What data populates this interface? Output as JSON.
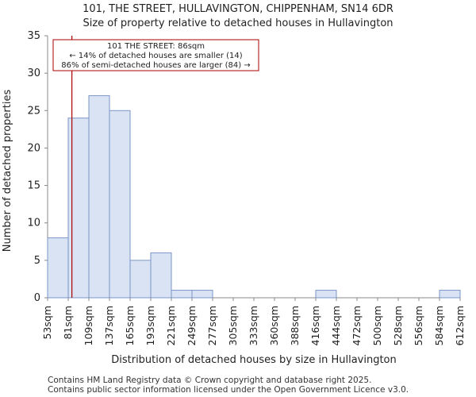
{
  "chart_data": {
    "type": "bar",
    "title": "101, THE STREET, HULLAVINGTON, CHIPPENHAM, SN14 6DR",
    "subtitle": "Size of property relative to detached houses in Hullavington",
    "xlabel": "Distribution of detached houses by size in Hullavington",
    "ylabel": "Number of detached properties",
    "ylim": [
      0,
      35
    ],
    "yticks": [
      0,
      5,
      10,
      15,
      20,
      25,
      30,
      35
    ],
    "bin_edges": [
      "53sqm",
      "81sqm",
      "109sqm",
      "137sqm",
      "165sqm",
      "193sqm",
      "221sqm",
      "249sqm",
      "277sqm",
      "305sqm",
      "333sqm",
      "360sqm",
      "388sqm",
      "416sqm",
      "444sqm",
      "472sqm",
      "500sqm",
      "528sqm",
      "556sqm",
      "584sqm",
      "612sqm"
    ],
    "values": [
      8,
      24,
      27,
      25,
      5,
      6,
      1,
      1,
      0,
      0,
      0,
      0,
      0,
      1,
      0,
      0,
      0,
      0,
      0,
      1
    ],
    "marker": {
      "value_sqm": 86,
      "lines": [
        "101 THE STREET: 86sqm",
        "← 14% of detached houses are smaller (14)",
        "86% of semi-detached houses are larger (84) →"
      ]
    },
    "colors": {
      "bar_fill": "#dae3f3",
      "bar_stroke": "#7b96c8",
      "marker": "#aa0000",
      "axis": "#888888"
    }
  },
  "footer": {
    "line1": "Contains HM Land Registry data © Crown copyright and database right 2025.",
    "line2": "Contains public sector information licensed under the Open Government Licence v3.0."
  }
}
